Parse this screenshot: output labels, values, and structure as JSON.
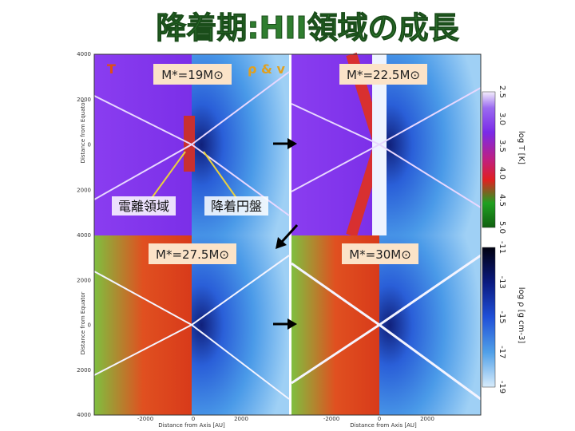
{
  "title": "降着期:HII領域の成長",
  "field_labels": {
    "temperature": "T",
    "density_velocity": "ρ & v"
  },
  "panels": [
    {
      "label": "M*=19M⊙"
    },
    {
      "label": "M*=22.5M⊙"
    },
    {
      "label": "M*=27.5M⊙"
    },
    {
      "label": "M*=30M⊙"
    }
  ],
  "annotations": {
    "ionized_region": "電離領域",
    "accretion_disk": "降着円盤"
  },
  "axes": {
    "y_label": "Distance from Equator",
    "x_label": "Distance from Axis [AU]",
    "y_ticks": [
      "4000",
      "2000",
      "0",
      "2000",
      "4000"
    ],
    "x_ticks": [
      "-2000",
      "0",
      "2000"
    ]
  },
  "colorbars": [
    {
      "label": "log T [K]",
      "ticks": [
        "2.5",
        "3.0",
        "3.5",
        "4.0",
        "4.5",
        "5.0"
      ]
    },
    {
      "label": "log ρ [g cm-3]",
      "ticks": [
        "-11",
        "-13",
        "-15",
        "-17",
        "-19"
      ]
    }
  ]
}
